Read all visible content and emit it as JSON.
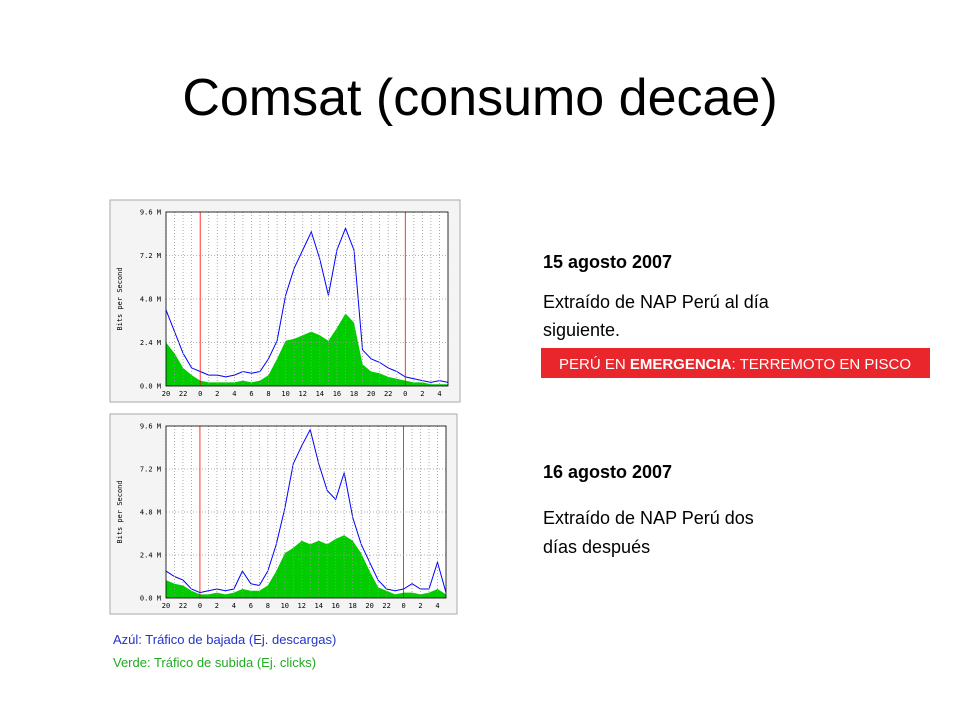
{
  "title": "Comsat (consumo decae)",
  "chart_data": [
    {
      "type": "area-line",
      "y_label": "Bits per Second",
      "categories": [
        "20",
        null,
        "22",
        null,
        "0",
        null,
        "2",
        null,
        "4",
        null,
        "6",
        null,
        "8",
        null,
        "10",
        null,
        "12",
        null,
        "14",
        null,
        "16",
        null,
        "18",
        null,
        "20",
        null,
        "22",
        null,
        "0",
        null,
        "2",
        null,
        "4",
        null
      ],
      "ylim": [
        0,
        9.6
      ],
      "yticks": [
        {
          "value": 0,
          "label": "0.0 M"
        },
        {
          "value": 2.4,
          "label": "2.4 M"
        },
        {
          "value": 4.8,
          "label": "4.8 M"
        },
        {
          "value": 7.2,
          "label": "7.2 M"
        },
        {
          "value": 9.6,
          "label": "9.6 M"
        }
      ],
      "grid": true,
      "series": [
        {
          "color": "#00cc00",
          "style": "area",
          "values": [
            2.4,
            1.8,
            1.0,
            0.6,
            0.3,
            0.2,
            0.2,
            0.2,
            0.2,
            0.3,
            0.2,
            0.3,
            0.6,
            1.5,
            2.5,
            2.6,
            2.8,
            3.0,
            2.8,
            2.5,
            3.2,
            4.0,
            3.5,
            1.2,
            0.8,
            0.7,
            0.5,
            0.4,
            0.3,
            0.2,
            0.2,
            0.1,
            0.1,
            0.1
          ]
        },
        {
          "color": "#0000ff",
          "style": "line",
          "values": [
            4.2,
            3.0,
            1.8,
            1.0,
            0.8,
            0.6,
            0.6,
            0.5,
            0.6,
            0.8,
            0.7,
            0.8,
            1.5,
            2.5,
            5.0,
            6.5,
            7.5,
            8.5,
            7.0,
            5.0,
            7.5,
            8.7,
            7.5,
            2.0,
            1.5,
            1.3,
            1.0,
            0.8,
            0.5,
            0.4,
            0.3,
            0.2,
            0.3,
            0.2
          ]
        }
      ]
    },
    {
      "type": "area-line",
      "y_label": "Bits per Second",
      "categories": [
        "20",
        null,
        "22",
        null,
        "0",
        null,
        "2",
        null,
        "4",
        null,
        "6",
        null,
        "8",
        null,
        "10",
        null,
        "12",
        null,
        "14",
        null,
        "16",
        null,
        "18",
        null,
        "20",
        null,
        "22",
        null,
        "0",
        null,
        "2",
        null,
        "4",
        null
      ],
      "ylim": [
        0,
        9.6
      ],
      "yticks": [
        {
          "value": 0,
          "label": "0.0 M"
        },
        {
          "value": 2.4,
          "label": "2.4 M"
        },
        {
          "value": 4.8,
          "label": "4.8 M"
        },
        {
          "value": 7.2,
          "label": "7.2 M"
        },
        {
          "value": 9.6,
          "label": "9.6 M"
        }
      ],
      "grid": true,
      "series": [
        {
          "color": "#00cc00",
          "style": "area",
          "values": [
            1.0,
            0.8,
            0.7,
            0.4,
            0.2,
            0.2,
            0.3,
            0.2,
            0.3,
            0.5,
            0.4,
            0.4,
            0.7,
            1.5,
            2.5,
            2.8,
            3.2,
            3.0,
            3.2,
            3.0,
            3.3,
            3.5,
            3.2,
            2.5,
            1.5,
            0.6,
            0.4,
            0.2,
            0.3,
            0.3,
            0.2,
            0.3,
            0.5,
            0.2
          ]
        },
        {
          "color": "#0000ff",
          "style": "line",
          "values": [
            1.5,
            1.2,
            1.0,
            0.5,
            0.3,
            0.4,
            0.5,
            0.4,
            0.5,
            1.5,
            0.8,
            0.7,
            1.5,
            3.0,
            5.0,
            7.5,
            8.5,
            9.4,
            7.5,
            6.0,
            5.5,
            7.0,
            4.5,
            3.0,
            2.0,
            1.0,
            0.5,
            0.4,
            0.5,
            0.8,
            0.5,
            0.5,
            2.0,
            0.3
          ]
        }
      ]
    }
  ],
  "notes": [
    {
      "date": "15 agosto 2007",
      "lines": [
        "Extraído de NAP Perú al día",
        "siguiente."
      ]
    },
    {
      "date": "16 agosto 2007",
      "lines": [
        "Extraído de NAP Perú dos",
        "días después"
      ]
    }
  ],
  "banner": [
    "PERÚ EN ",
    "EMERGENCIA",
    ": TERREMOTO EN PISCO"
  ],
  "legend_notes": [
    "Azúl: Tráfico de bajada (Ej. descargas)",
    "Verde: Tráfico de subida (Ej. clicks)"
  ]
}
